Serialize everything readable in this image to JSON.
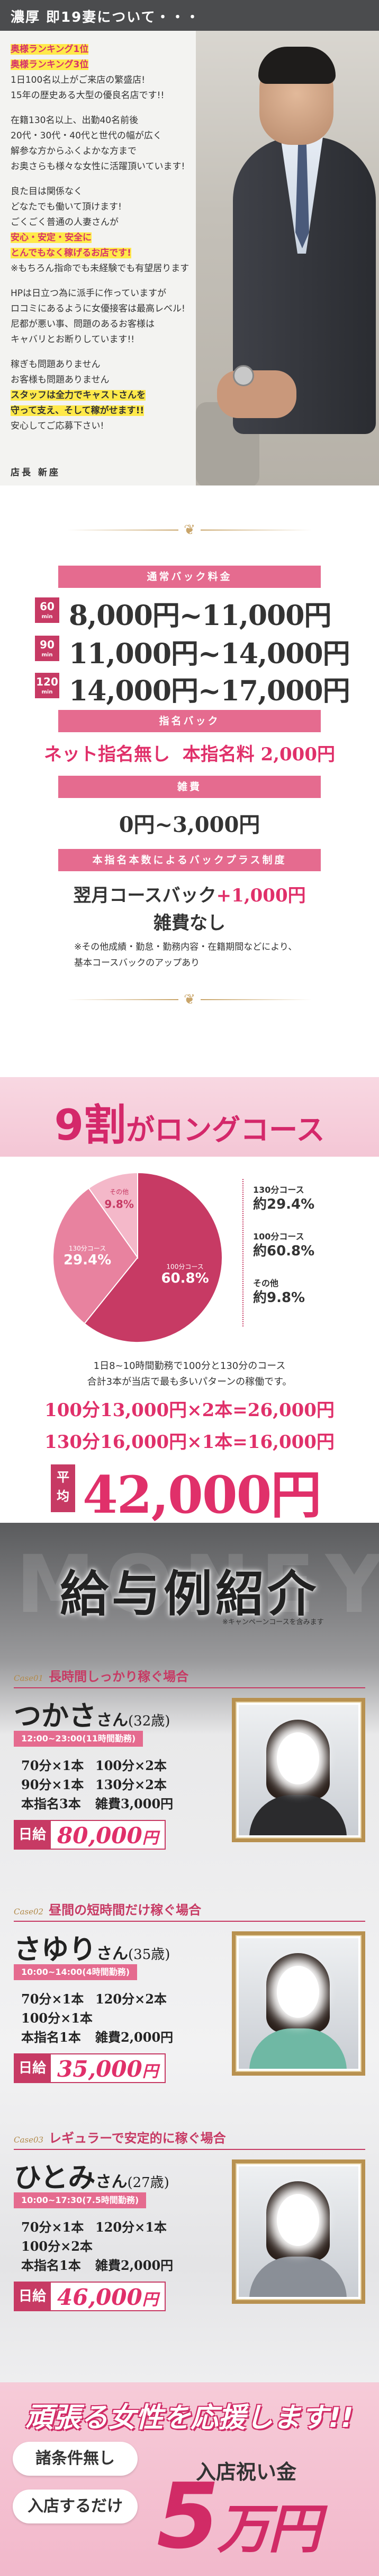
{
  "intro": {
    "header": "濃厚 即19妻について・・・",
    "lines": [
      {
        "t": "奥様ランキング1位",
        "c": "hl"
      },
      {
        "t": "奥様ランキング3位",
        "c": "hl"
      },
      {
        "t": "1日100名以上がご来店の繁盛店!",
        "c": ""
      },
      {
        "t": "15年の歴史ある大型の優良名店です!!",
        "c": ""
      },
      {
        "t": "",
        "c": "gap"
      },
      {
        "t": "在籍130名以上、出勤40名前後",
        "c": ""
      },
      {
        "t": "20代・30代・40代と世代の幅が広く",
        "c": ""
      },
      {
        "t": "解参な方からふくよかな方まで",
        "c": ""
      },
      {
        "t": "お奥さらも様々な女性に活躍頂いています!",
        "c": ""
      },
      {
        "t": "",
        "c": "gap"
      },
      {
        "t": "良た目は関係なく",
        "c": ""
      },
      {
        "t": "どなたでも働いて頂けます!",
        "c": ""
      },
      {
        "t": "ごくごく普通の人妻さんが",
        "c": ""
      },
      {
        "t": "安心・安定・安全に",
        "c": "hl"
      },
      {
        "t": "とんでもなく稼げるお店です!",
        "c": "hl"
      },
      {
        "t": "※もちろん指命でも未経験でも有望居ります",
        "c": ""
      },
      {
        "t": "",
        "c": "gap"
      },
      {
        "t": "HPは日立つ為に派手に作っていますが",
        "c": ""
      },
      {
        "t": "ロコミにあるように女優接客は最高レベル!",
        "c": ""
      },
      {
        "t": "尼都が悪い事、問題のあるお客様は",
        "c": ""
      },
      {
        "t": "キャバリとお断りしています!!",
        "c": ""
      },
      {
        "t": "",
        "c": "gap"
      },
      {
        "t": "稼ぎも問題ありません",
        "c": ""
      },
      {
        "t": "お客様も問題ありません",
        "c": ""
      },
      {
        "t": "スタッフは全力でキャストさんを",
        "c": "hl2"
      },
      {
        "t": "守って支え、そして稼がせます!!",
        "c": "hl2"
      },
      {
        "t": "安心してご応募下さい!",
        "c": ""
      }
    ],
    "signature": "店長 新座"
  },
  "pay": {
    "header": "通常バック料金",
    "rows": [
      {
        "min": "60",
        "unit": "min",
        "price": "8,000円~11,000円"
      },
      {
        "min": "90",
        "unit": "min",
        "price": "11,000円~14,000円"
      },
      {
        "min": "120",
        "unit": "min",
        "price": "14,000円~17,000円"
      }
    ],
    "nomination_header": "指名バック",
    "nomination_net": "ネット指名無し",
    "nomination_main": "本指名料 2,000円",
    "misc_header": "雑費",
    "misc_value": "0円~3,000円",
    "plus_header": "本指名本数によるバックプラス制度",
    "plus_line1": "翌月コースバック",
    "plus_line1_red": "+1,000円",
    "plus_line2": "雑費なし",
    "plus_note1": "※その他成績・勤怠・勤務内容・在籍期間などにより、",
    "plus_note2": "基本コースバックのアップあり"
  },
  "long": {
    "title_big": "9割",
    "title_rest": "がロングコース",
    "legend": [
      {
        "label": "130分コース",
        "value": "約29.4%"
      },
      {
        "label": "100分コース",
        "value": "約60.8%"
      },
      {
        "label": "その他",
        "value": "約9.8%"
      }
    ],
    "note1": "1日8~10時間勤務で100分と130分のコース",
    "note2": "合計3本が当店で最も多いパターンの稼働です。",
    "calc1": "100分13,000円×2本=26,000円",
    "calc2": "130分16,000円×1本=16,000円",
    "avg_label": "平均",
    "avg_value": "42,000円"
  },
  "chart_data": {
    "type": "pie",
    "categories": [
      "100分コース",
      "130分コース",
      "その他"
    ],
    "values": [
      60.8,
      29.4,
      9.8
    ],
    "colors": [
      "#c73a64",
      "#e8829f",
      "#f4b8c9"
    ],
    "slice_labels": [
      "100分コース",
      "130分コース",
      "その他"
    ],
    "slice_values": [
      "60.8%",
      "29.4%",
      "9.8%"
    ],
    "title": "",
    "legend": "right"
  },
  "salary": {
    "bg_word": "MONEY",
    "title": "給与例紹介",
    "campaign": "※キャンペーンコースを含みます",
    "cases": [
      {
        "no": "Case01",
        "desc": "長時間しっかり稼ぐ場合",
        "name": "つかさ",
        "san": "さん",
        "age": "(32歳)",
        "hours": "12:00~23:00(11時間勤務)",
        "r1a": "70分×1本",
        "r1b": "100分×2本",
        "r2a": "90分×1本",
        "r2b": "130分×2本",
        "r3a": "本指名3本",
        "r3b": "雑費3,000円",
        "daily_label": "日給",
        "daily_value": "80,000",
        "yen": "円",
        "outfit": "#2b2b2d"
      },
      {
        "no": "Case02",
        "desc": "昼間の短時間だけ稼ぐ場合",
        "name": "さゆり",
        "san": "さん",
        "age": "(35歳)",
        "hours": "10:00~14:00(4時間勤務)",
        "r1a": "70分×1本",
        "r1b": "120分×2本",
        "r2a": "100分×1本",
        "r2b": "",
        "r3a": "本指名1本",
        "r3b": "雑費2,000円",
        "daily_label": "日給",
        "daily_value": "35,000",
        "yen": "円",
        "outfit": "#6fb8a4"
      },
      {
        "no": "Case03",
        "desc": "レギュラーで安定的に稼ぐ場合",
        "name": "ひとみ",
        "san": "さん",
        "age": "(27歳)",
        "hours": "10:00~17:30(7.5時間勤務)",
        "r1a": "70分×1本",
        "r1b": "120分×1本",
        "r2a": "100分×2本",
        "r2b": "",
        "r3a": "本指名1本",
        "r3b": "雑費2,000円",
        "daily_label": "日給",
        "daily_value": "46,000",
        "yen": "円",
        "outfit": "#8a8f97"
      }
    ]
  },
  "banner": {
    "title": "頑張る女性を応援します!!",
    "cond1": "諸条件無し",
    "cond2": "入店するだけ",
    "label": "入店祝い金",
    "amount": "5",
    "unit": "万円"
  }
}
